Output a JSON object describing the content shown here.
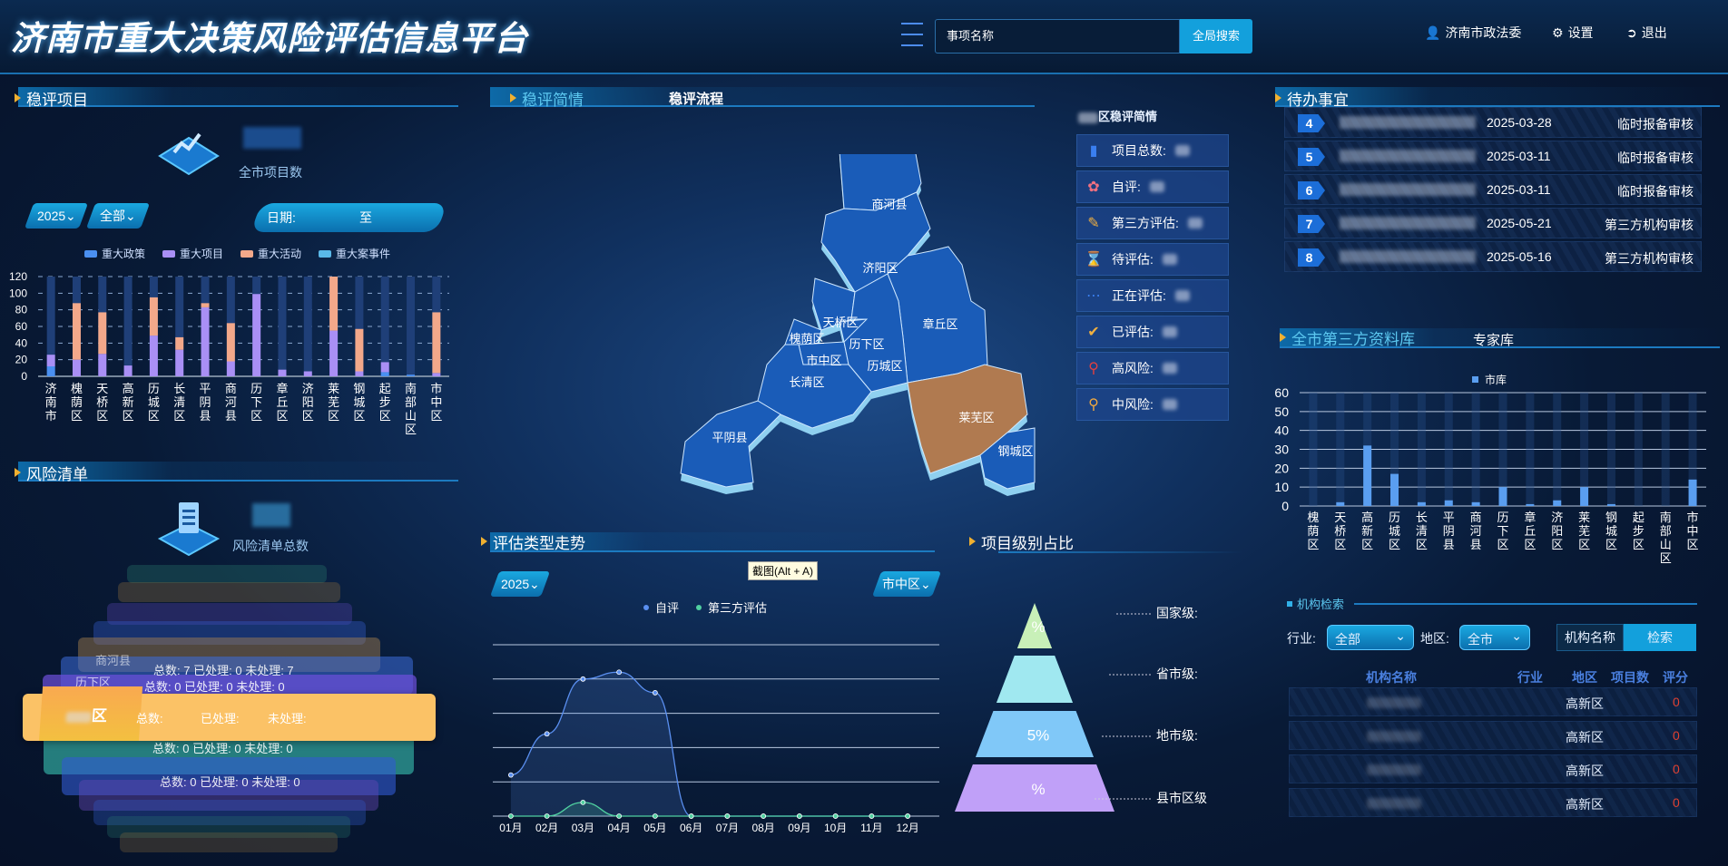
{
  "header": {
    "title": "济南市重大决策风险评估信息平台",
    "search_placeholder": "事项名称",
    "search_button": "全局搜索",
    "user": "济南市政法委",
    "settings": "设置",
    "logout": "退出"
  },
  "projects": {
    "title": "稳评项目",
    "count_label": "全市项目数",
    "year": "2025",
    "scope": "全部",
    "date_label": "日期:",
    "date_to": "至"
  },
  "risk": {
    "title": "风险清单",
    "count_label": "风险清单总数",
    "items": [
      {
        "name": "商河县",
        "total": "总数: 7",
        "done": "已处理: 0",
        "todo": "未处理: 7"
      },
      {
        "name": "历下区",
        "total": "总数: 0",
        "done": "已处理: 0",
        "todo": "未处理: 0"
      },
      {
        "name": "区",
        "total": "总数:",
        "done": "已处理:",
        "todo": "未处理:"
      },
      {
        "name": "",
        "total": "总数: 0",
        "done": "已处理: 0",
        "todo": "未处理: 0"
      },
      {
        "name": "",
        "total": "总数: 0",
        "done": "已处理: 0",
        "todo": "未处理: 0"
      }
    ]
  },
  "center": {
    "tabs": [
      "稳评简情",
      "稳评流程"
    ],
    "panel_title": "区稳评简情",
    "stats": [
      {
        "label": "项目总数:",
        "icon": "bar-chart-icon",
        "color": "#3a7ff0"
      },
      {
        "label": "自评:",
        "icon": "lotus-icon",
        "color": "#f07080"
      },
      {
        "label": "第三方评估:",
        "icon": "note-edit-icon",
        "color": "#f0b040"
      },
      {
        "label": "待评估:",
        "icon": "hourglass-icon",
        "color": "#30c0a0"
      },
      {
        "label": "正在评估:",
        "icon": "loading-icon",
        "color": "#3a7ff0"
      },
      {
        "label": "已评估:",
        "icon": "check-circle-icon",
        "color": "#f0b040"
      },
      {
        "label": "高风险:",
        "icon": "map-pin-icon",
        "color": "#e04040"
      },
      {
        "label": "中风险:",
        "icon": "map-pin-icon",
        "color": "#f0a840"
      }
    ],
    "map": {
      "highlight_color": "#b07a50",
      "base_color": "#1a5cb8",
      "regions": [
        "商河县",
        "济阳区",
        "章丘区",
        "天桥区",
        "槐荫区",
        "历下区",
        "市中区",
        "历城区",
        "长清区",
        "平阴县",
        "莱芜区",
        "钢城区"
      ],
      "highlighted": "莱芜区"
    }
  },
  "trend": {
    "title": "评估类型走势",
    "year": "2025",
    "district": "市中区",
    "tooltip": "截图(Alt + A)"
  },
  "level": {
    "title": "项目级别占比",
    "levels": [
      {
        "label": "国家级:",
        "percent": "%",
        "color": "#c8f0b8"
      },
      {
        "label": "省市级:",
        "percent": "",
        "color": "#a0e8f0"
      },
      {
        "label": "地市级:",
        "percent": "5%",
        "color": "#80c8f8"
      },
      {
        "label": "县市区级",
        "percent": "%",
        "color": "#c0a0f8"
      }
    ]
  },
  "todo": {
    "title": "待办事宜",
    "rows": [
      {
        "num": "4",
        "date": "2025-03-28",
        "type": "临时报备审核"
      },
      {
        "num": "5",
        "date": "2025-03-11",
        "type": "临时报备审核"
      },
      {
        "num": "6",
        "date": "2025-03-11",
        "type": "临时报备审核"
      },
      {
        "num": "7",
        "date": "2025-05-21",
        "type": "第三方机构审核"
      },
      {
        "num": "8",
        "date": "2025-05-16",
        "type": "第三方机构审核"
      }
    ]
  },
  "library": {
    "tabs": [
      "全市第三方资料库",
      "专家库"
    ]
  },
  "org_search": {
    "title": "机构检索",
    "industry_label": "行业:",
    "industry": "全部",
    "region_label": "地区:",
    "region": "全市",
    "name_button": "机构名称",
    "search_button": "检索",
    "columns": [
      "机构名称",
      "行业",
      "地区",
      "项目数",
      "评分"
    ],
    "rows": [
      {
        "region": "高新区",
        "score": "0"
      },
      {
        "region": "高新区",
        "score": "0"
      },
      {
        "region": "高新区",
        "score": "0"
      },
      {
        "region": "高新区",
        "score": "0"
      }
    ]
  },
  "chart_data": [
    {
      "type": "bar",
      "stacked": true,
      "categories": [
        "济南市",
        "槐荫区",
        "天桥区",
        "高新区",
        "历城区",
        "长清区",
        "平阴县",
        "商河县",
        "历下区",
        "章丘区",
        "济阳区",
        "莱芜区",
        "钢城区",
        "起步区",
        "南部山区",
        "市中区"
      ],
      "series": [
        {
          "name": "重大政策",
          "color": "#4a8ff0",
          "values": [
            12,
            0,
            0,
            0,
            0,
            0,
            0,
            0,
            0,
            0,
            0,
            0,
            0,
            5,
            2,
            0
          ]
        },
        {
          "name": "重大项目",
          "color": "#a98ff5",
          "values": [
            14,
            20,
            27,
            13,
            49,
            32,
            83,
            18,
            99,
            8,
            6,
            55,
            6,
            12,
            0,
            4
          ]
        },
        {
          "name": "重大活动",
          "color": "#f3a88a",
          "values": [
            0,
            68,
            50,
            0,
            46,
            15,
            5,
            46,
            0,
            0,
            0,
            65,
            51,
            0,
            0,
            73
          ]
        },
        {
          "name": "重大案事件",
          "color": "#5ab8e8",
          "values": [
            0,
            0,
            0,
            0,
            0,
            0,
            0,
            0,
            0,
            0,
            0,
            0,
            0,
            0,
            0,
            0
          ]
        }
      ],
      "ylim": [
        0,
        120
      ],
      "yticks": [
        0,
        20,
        40,
        60,
        80,
        100,
        120
      ],
      "grid": true,
      "legend": "top"
    },
    {
      "type": "line",
      "area": true,
      "categories": [
        "01月",
        "02月",
        "03月",
        "04月",
        "05月",
        "06月",
        "07月",
        "08月",
        "09月",
        "10月",
        "11月",
        "12月"
      ],
      "series": [
        {
          "name": "自评",
          "color": "#5a8ff0",
          "values": [
            1.2,
            2.4,
            4.0,
            4.2,
            3.6,
            0,
            0,
            0,
            0,
            0,
            0,
            0
          ]
        },
        {
          "name": "第三方评估",
          "color": "#50d0a0",
          "values": [
            0,
            0,
            0.4,
            0,
            0,
            0,
            0,
            0,
            0,
            0,
            0,
            0
          ]
        }
      ],
      "ylim": [
        0,
        5
      ],
      "grid": true,
      "legend": "top"
    },
    {
      "type": "bar",
      "categories": [
        "槐荫区",
        "天桥区",
        "高新区",
        "历城区",
        "长清区",
        "平阴县",
        "商河县",
        "历下区",
        "章丘区",
        "济阳区",
        "莱芜区",
        "钢城区",
        "起步区",
        "南部山区",
        "市中区"
      ],
      "series": [
        {
          "name": "市库",
          "color": "#5a9ef0",
          "values": [
            0,
            2,
            32,
            17,
            2,
            3,
            2,
            10,
            1,
            3,
            10,
            1,
            0,
            0,
            14
          ]
        }
      ],
      "ylim": [
        0,
        60
      ],
      "yticks": [
        0,
        10,
        20,
        30,
        40,
        50,
        60
      ],
      "grid": true,
      "legend": "top"
    }
  ]
}
